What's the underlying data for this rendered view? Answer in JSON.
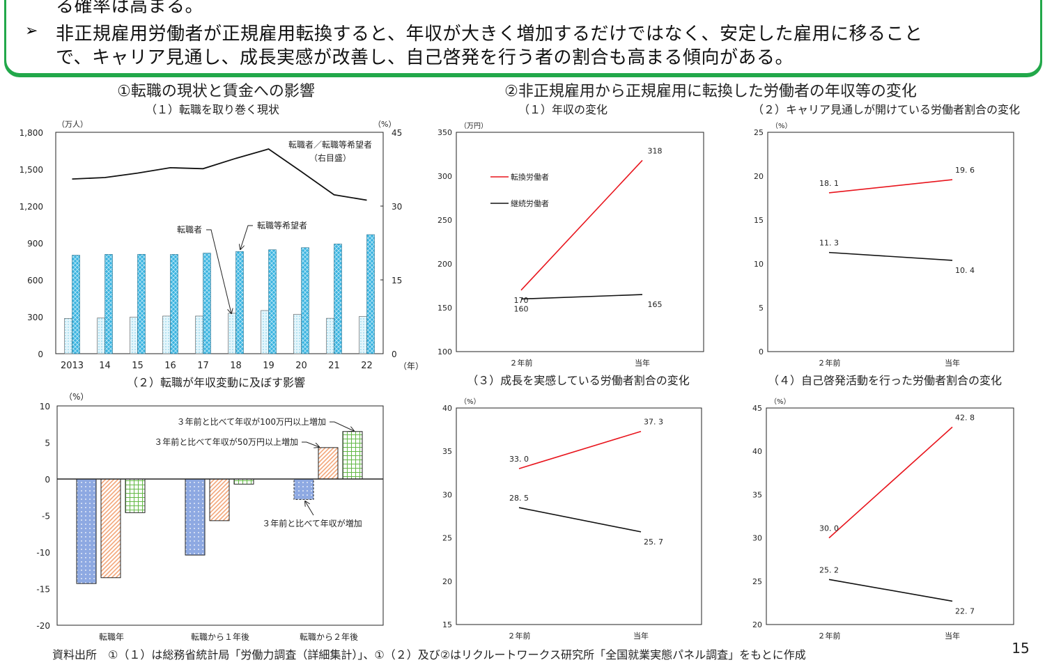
{
  "summary": {
    "line0": "る確率は高まる。",
    "line1": "非正規雇用労働者が正規雇用転換すると、年収が大きく増加するだけではなく、安定した雇用に移ること",
    "line2": "で、キャリア見通し、成長実感が改善し、自己啓発を行う者の割合も高まる傾向がある。",
    "bullet_icon": "arrowhead-bullet"
  },
  "section1_title": "①転職の現状と賃金への影響",
  "section2_title": "②非正規雇用から正規雇用に転換した労働者の年収等の変化",
  "footer": "資料出所　①（１）は総務省統計局「労働力調査（詳細集計）」、①（２）及び②はリクルートワークス研究所「全国就業実態パネル調査」をもとに作成",
  "page_number": "15",
  "colors": {
    "frame": "#22a84a",
    "red": "#e8141c",
    "black": "#111111",
    "blue": "#3bb4e0",
    "lightblue": "#d8f1fa",
    "dotblue": "#8ea9e2",
    "orange": "#f3a679",
    "green": "#62b845"
  },
  "chart_data": [
    {
      "id": "a",
      "type": "bar",
      "title": "（１）転職を取り巻く現状",
      "ylabel": "（万人）",
      "y2label": "（%）",
      "xlabel": "（年）",
      "categories": [
        "2013",
        "14",
        "15",
        "16",
        "17",
        "18",
        "19",
        "20",
        "21",
        "22"
      ],
      "ylim": [
        0,
        1800
      ],
      "yticks": [
        0,
        300,
        600,
        900,
        1200,
        1500,
        1800
      ],
      "ytick_labels": [
        "0",
        "300",
        "600",
        "900",
        "1,200",
        "1,500",
        "1,800"
      ],
      "y2lim": [
        0,
        45
      ],
      "y2ticks": [
        "0",
        "15",
        "30",
        "45"
      ],
      "series": [
        {
          "name": "転職者",
          "values": [
            287,
            290,
            298,
            306,
            306,
            329,
            351,
            321,
            288,
            303
          ]
        },
        {
          "name": "転職等希望者",
          "values": [
            801,
            807,
            808,
            807,
            818,
            831,
            845,
            862,
            892,
            968
          ]
        },
        {
          "name": "転職者／転職等希望者",
          "axis": "right",
          "values": [
            35.5,
            35.8,
            36.7,
            37.8,
            37.6,
            39.7,
            41.6,
            37.0,
            32.3,
            31.2
          ]
        }
      ],
      "annotations": {
        "ratio": "転職者／転職等希望者",
        "ratio_axis": "（右目盛）",
        "movers": "転職者",
        "hopefuls": "転職等希望者"
      }
    },
    {
      "id": "b",
      "type": "bar",
      "title": "（２）転職が年収変動に及ぼす影響",
      "ylabel": "（%）",
      "categories": [
        "転職年",
        "転職から１年後",
        "転職から２年後"
      ],
      "ylim": [
        -20,
        10
      ],
      "yticks": [
        "10",
        "5",
        "0",
        "-5",
        "-10",
        "-15",
        "-20"
      ],
      "series": [
        {
          "name": "３年前と比べて年収が増加",
          "values": [
            -14.3,
            -10.4,
            -2.8
          ]
        },
        {
          "name": "３年前と比べて年収が50万円以上増加",
          "values": [
            -13.5,
            -5.7,
            4.3
          ]
        },
        {
          "name": "３年前と比べて年収が100万円以上増加",
          "values": [
            -4.6,
            -0.7,
            6.5
          ]
        }
      ]
    },
    {
      "id": "c",
      "type": "line",
      "title": "（１）年収の変化",
      "ylabel": "（万円）",
      "categories": [
        "２年前",
        "当年"
      ],
      "ylim": [
        100,
        350
      ],
      "yticks": [
        "100",
        "150",
        "200",
        "250",
        "300",
        "350"
      ],
      "legend": [
        "転換労働者",
        "継続労働者"
      ],
      "series": [
        {
          "name": "転換労働者",
          "values": [
            170,
            318
          ],
          "labels": [
            "170",
            "318"
          ]
        },
        {
          "name": "継続労働者",
          "values": [
            160,
            165
          ],
          "labels": [
            "160",
            "165"
          ]
        }
      ]
    },
    {
      "id": "d",
      "type": "line",
      "title": "（２）キャリア見通しが開けている労働者割合の変化",
      "ylabel": "（%）",
      "categories": [
        "２年前",
        "当年"
      ],
      "ylim": [
        0,
        25
      ],
      "yticks": [
        "0",
        "5",
        "10",
        "15",
        "20",
        "25"
      ],
      "series": [
        {
          "name": "転換労働者",
          "values": [
            18.1,
            19.6
          ],
          "labels": [
            "18. 1",
            "19. 6"
          ]
        },
        {
          "name": "継続労働者",
          "values": [
            11.3,
            10.4
          ],
          "labels": [
            "11. 3",
            "10. 4"
          ]
        }
      ]
    },
    {
      "id": "e",
      "type": "line",
      "title": "（３）成長を実感している労働者割合の変化",
      "ylabel": "（%）",
      "categories": [
        "２年前",
        "当年"
      ],
      "ylim": [
        15,
        40
      ],
      "yticks": [
        "15",
        "20",
        "25",
        "30",
        "35",
        "40"
      ],
      "series": [
        {
          "name": "転換労働者",
          "values": [
            33.0,
            37.3
          ],
          "labels": [
            "33. 0",
            "37. 3"
          ]
        },
        {
          "name": "継続労働者",
          "values": [
            28.5,
            25.7
          ],
          "labels": [
            "28. 5",
            "25. 7"
          ]
        }
      ]
    },
    {
      "id": "f",
      "type": "line",
      "title": "（４）自己啓発活動を行った労働者割合の変化",
      "ylabel": "（%）",
      "categories": [
        "２年前",
        "当年"
      ],
      "ylim": [
        20,
        45
      ],
      "yticks": [
        "20",
        "25",
        "30",
        "35",
        "40",
        "45"
      ],
      "series": [
        {
          "name": "転換労働者",
          "values": [
            30.0,
            42.8
          ],
          "labels": [
            "30. 0",
            "42. 8"
          ]
        },
        {
          "name": "継続労働者",
          "values": [
            25.2,
            22.7
          ],
          "labels": [
            "25. 2",
            "22. 7"
          ]
        }
      ]
    }
  ]
}
